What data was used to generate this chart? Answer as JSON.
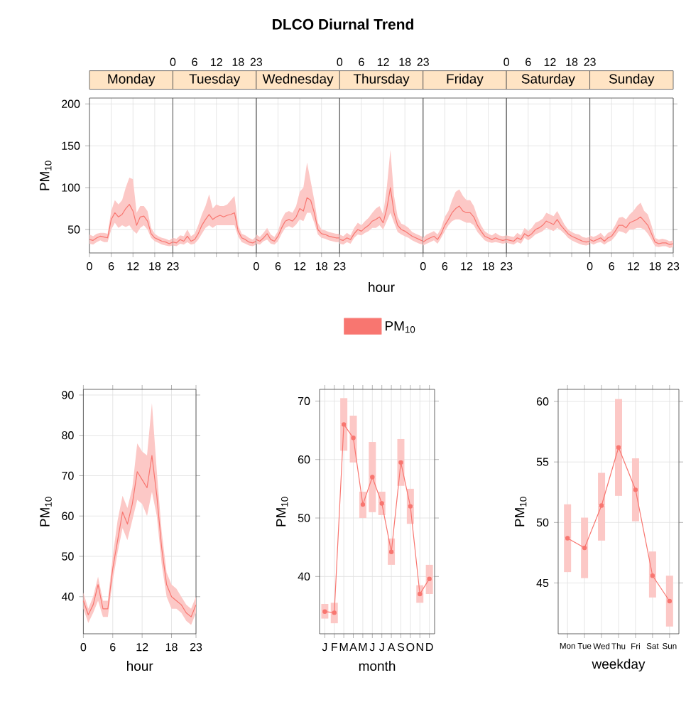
{
  "chart_data": [
    {
      "type": "line",
      "title": "Monday",
      "ylabel": "PM$_{10}$",
      "annotations": [
        "DLCO Diurnal Trend"
      ],
      "x": [
        0,
        1,
        2,
        3,
        4,
        5,
        6,
        7,
        8,
        9,
        10,
        11,
        12,
        13,
        14,
        15,
        16,
        17,
        18,
        19,
        20,
        21,
        22,
        23
      ],
      "xlim": [
        0,
        23
      ],
      "xticks": [
        0,
        6,
        12,
        18,
        23
      ],
      "ylim": [
        22,
        207
      ],
      "yticks": [
        50,
        100,
        150,
        200
      ],
      "grid": true,
      "series": [
        {
          "color": "#f87670",
          "values": [
            38,
            37,
            40,
            42,
            41,
            40,
            62,
            70,
            65,
            68,
            75,
            80,
            72,
            55,
            65,
            66,
            60,
            45,
            40,
            38,
            36,
            35,
            33,
            35
          ],
          "lower": [
            33,
            32,
            35,
            37,
            35,
            35,
            50,
            58,
            52,
            55,
            53,
            55,
            49,
            45,
            52,
            55,
            50,
            40,
            36,
            34,
            32,
            31,
            30,
            31
          ],
          "upper": [
            44,
            42,
            45,
            46,
            46,
            45,
            72,
            85,
            80,
            85,
            100,
            112,
            110,
            70,
            78,
            78,
            72,
            52,
            45,
            42,
            40,
            39,
            37,
            40
          ]
        }
      ]
    },
    {
      "type": "line",
      "title": "Tuesday",
      "tick_labels": "x",
      "x": [
        0,
        1,
        2,
        3,
        4,
        5,
        6,
        7,
        8,
        9,
        10,
        11,
        12,
        13,
        14,
        15,
        16,
        17,
        18,
        19,
        20,
        21,
        22,
        23
      ],
      "xlim": [
        0,
        23
      ],
      "xticks": [
        0,
        6,
        12,
        18,
        23
      ],
      "ylim": [
        22,
        207
      ],
      "yticks": [
        50,
        100,
        150,
        200
      ],
      "grid": true,
      "series": [
        {
          "color": "#f87670",
          "values": [
            35,
            34,
            38,
            36,
            42,
            36,
            38,
            45,
            55,
            62,
            68,
            62,
            65,
            67,
            65,
            67,
            68,
            70,
            48,
            40,
            38,
            35,
            34,
            36
          ],
          "lower": [
            31,
            30,
            33,
            32,
            35,
            32,
            33,
            38,
            45,
            52,
            55,
            52,
            55,
            55,
            55,
            55,
            55,
            55,
            42,
            35,
            33,
            31,
            30,
            32
          ],
          "upper": [
            40,
            39,
            43,
            42,
            50,
            42,
            45,
            55,
            68,
            78,
            92,
            75,
            80,
            78,
            78,
            80,
            85,
            90,
            55,
            45,
            43,
            40,
            38,
            42
          ]
        }
      ]
    },
    {
      "type": "line",
      "title": "Wednesday",
      "tick_labels": "x",
      "x": [
        0,
        1,
        2,
        3,
        4,
        5,
        6,
        7,
        8,
        9,
        10,
        11,
        12,
        13,
        14,
        15,
        16,
        17,
        18,
        19,
        20,
        21,
        22,
        23
      ],
      "xlim": [
        0,
        23
      ],
      "xticks": [
        0,
        6,
        12,
        18,
        23
      ],
      "ylim": [
        22,
        207
      ],
      "yticks": [
        50,
        100,
        150,
        200
      ],
      "grid": true,
      "series": [
        {
          "color": "#f87670",
          "values": [
            38,
            36,
            40,
            45,
            38,
            36,
            42,
            52,
            60,
            62,
            60,
            65,
            75,
            72,
            88,
            85,
            70,
            50,
            45,
            44,
            42,
            41,
            40,
            40
          ],
          "lower": [
            33,
            32,
            36,
            38,
            33,
            32,
            36,
            45,
            52,
            54,
            52,
            56,
            62,
            60,
            70,
            70,
            58,
            44,
            40,
            39,
            37,
            36,
            35,
            35
          ],
          "upper": [
            44,
            41,
            46,
            52,
            44,
            41,
            48,
            62,
            70,
            72,
            70,
            78,
            95,
            100,
            130,
            108,
            85,
            58,
            50,
            49,
            47,
            46,
            45,
            45
          ]
        }
      ]
    },
    {
      "type": "line",
      "title": "Thursday",
      "xlabel": "hour",
      "legend": "bottom",
      "tick_labels": "x",
      "x": [
        0,
        1,
        2,
        3,
        4,
        5,
        6,
        7,
        8,
        9,
        10,
        11,
        12,
        13,
        14,
        15,
        16,
        17,
        18,
        19,
        20,
        21,
        22,
        23
      ],
      "xlim": [
        0,
        23
      ],
      "xticks": [
        0,
        6,
        12,
        18,
        23
      ],
      "ylim": [
        22,
        207
      ],
      "yticks": [
        50,
        100,
        150,
        200
      ],
      "grid": true,
      "series": [
        {
          "name": "PM$_{10}$",
          "color": "#f87670",
          "values": [
            38,
            37,
            40,
            38,
            45,
            50,
            48,
            52,
            55,
            60,
            62,
            65,
            58,
            75,
            100,
            70,
            55,
            50,
            48,
            45,
            42,
            40,
            38,
            36
          ],
          "lower": [
            33,
            32,
            35,
            33,
            40,
            44,
            43,
            46,
            48,
            52,
            52,
            55,
            50,
            60,
            70,
            58,
            47,
            44,
            42,
            40,
            37,
            35,
            33,
            32
          ],
          "upper": [
            44,
            42,
            46,
            43,
            52,
            58,
            55,
            60,
            64,
            70,
            75,
            78,
            68,
            100,
            145,
            90,
            65,
            57,
            55,
            52,
            47,
            45,
            43,
            41
          ]
        }
      ]
    },
    {
      "type": "line",
      "title": "Friday",
      "tick_labels": "x",
      "x": [
        0,
        1,
        2,
        3,
        4,
        5,
        6,
        7,
        8,
        9,
        10,
        11,
        12,
        13,
        14,
        15,
        16,
        17,
        18,
        19,
        20,
        21,
        22,
        23
      ],
      "xlim": [
        0,
        23
      ],
      "xticks": [
        0,
        6,
        12,
        18,
        23
      ],
      "ylim": [
        22,
        207
      ],
      "yticks": [
        50,
        100,
        150,
        200
      ],
      "grid": true,
      "series": [
        {
          "color": "#f87670",
          "values": [
            35,
            38,
            40,
            42,
            38,
            45,
            55,
            62,
            70,
            75,
            78,
            72,
            70,
            70,
            65,
            55,
            48,
            42,
            40,
            38,
            40,
            38,
            37,
            38
          ],
          "lower": [
            31,
            33,
            35,
            37,
            33,
            40,
            48,
            55,
            60,
            62,
            62,
            60,
            58,
            58,
            55,
            47,
            42,
            37,
            35,
            34,
            35,
            34,
            33,
            34
          ],
          "upper": [
            40,
            44,
            46,
            48,
            44,
            52,
            65,
            72,
            85,
            95,
            98,
            90,
            85,
            85,
            78,
            65,
            55,
            48,
            45,
            43,
            46,
            43,
            42,
            43
          ]
        }
      ]
    },
    {
      "type": "line",
      "title": "Saturday",
      "tick_labels": "x",
      "x": [
        0,
        1,
        2,
        3,
        4,
        5,
        6,
        7,
        8,
        9,
        10,
        11,
        12,
        13,
        14,
        15,
        16,
        17,
        18,
        19,
        20,
        21,
        22,
        23
      ],
      "xlim": [
        0,
        23
      ],
      "xticks": [
        0,
        6,
        12,
        18,
        23
      ],
      "ylim": [
        22,
        207
      ],
      "yticks": [
        50,
        100,
        150,
        200
      ],
      "grid": true,
      "series": [
        {
          "color": "#f87670",
          "values": [
            38,
            37,
            36,
            40,
            38,
            45,
            42,
            45,
            50,
            52,
            55,
            60,
            58,
            56,
            62,
            55,
            50,
            45,
            42,
            40,
            38,
            36,
            35,
            36
          ],
          "lower": [
            34,
            33,
            32,
            35,
            33,
            40,
            37,
            40,
            44,
            46,
            48,
            52,
            50,
            48,
            52,
            49,
            45,
            40,
            37,
            35,
            33,
            31.5,
            31,
            32
          ],
          "upper": [
            43,
            42,
            41,
            46,
            43,
            52,
            48,
            52,
            58,
            60,
            63,
            70,
            68,
            66,
            72,
            64,
            56,
            50,
            47,
            45,
            44,
            41,
            40,
            41
          ]
        }
      ]
    },
    {
      "type": "line",
      "title": "Sunday",
      "tick_labels": "x",
      "x": [
        0,
        1,
        2,
        3,
        4,
        5,
        6,
        7,
        8,
        9,
        10,
        11,
        12,
        13,
        14,
        15,
        16,
        17,
        18,
        19,
        20,
        21,
        22,
        23
      ],
      "xlim": [
        0,
        23
      ],
      "xticks": [
        0,
        6,
        12,
        18,
        23
      ],
      "ylim": [
        22,
        207
      ],
      "yticks": [
        50,
        100,
        150,
        200
      ],
      "grid": true,
      "series": [
        {
          "color": "#f87670",
          "values": [
            38,
            36,
            38,
            40,
            36,
            40,
            42,
            48,
            55,
            55,
            52,
            58,
            60,
            62,
            65,
            60,
            55,
            45,
            35,
            33,
            34,
            34,
            32,
            33
          ],
          "lower": [
            34,
            32,
            34,
            35,
            32,
            35,
            37,
            42,
            48,
            47,
            45,
            50,
            50,
            52,
            52,
            50,
            45,
            38,
            30,
            29,
            30,
            30,
            28,
            29
          ],
          "upper": [
            43,
            41,
            43,
            46,
            41,
            46,
            48,
            55,
            64,
            65,
            62,
            68,
            72,
            78,
            82,
            72,
            68,
            55,
            40,
            38,
            39,
            38,
            36,
            37
          ]
        }
      ]
    },
    {
      "type": "line",
      "xlabel": "hour",
      "ylabel": "PM$_{10}$",
      "x": [
        0,
        1,
        2,
        3,
        4,
        5,
        6,
        7,
        8,
        9,
        10,
        11,
        12,
        13,
        14,
        15,
        16,
        17,
        18,
        19,
        20,
        21,
        22,
        23
      ],
      "xlim": [
        0,
        23
      ],
      "xticks": [
        0,
        6,
        12,
        18,
        23
      ],
      "ylim": [
        30.8,
        91.4
      ],
      "yticks": [
        40,
        50,
        60,
        70,
        80,
        90
      ],
      "grid": true,
      "series": [
        {
          "color": "#f87670",
          "values": [
            39,
            35.5,
            38,
            43,
            37,
            37,
            47,
            54,
            61,
            58,
            63,
            71,
            69,
            67,
            75,
            65,
            52,
            43,
            40,
            39,
            38,
            36,
            35,
            38
          ],
          "lower": [
            37,
            33.5,
            36,
            39,
            35,
            35,
            44,
            51,
            57,
            54,
            59,
            64,
            63,
            60,
            66,
            60,
            48,
            40,
            37,
            37,
            36,
            34,
            33,
            36
          ],
          "upper": [
            41,
            37,
            40,
            45,
            39,
            39,
            50,
            59,
            65,
            62,
            67,
            78,
            76,
            75,
            88,
            71,
            56,
            46,
            43,
            42,
            40,
            38,
            37,
            40
          ]
        }
      ]
    },
    {
      "type": "line",
      "xlabel": "month",
      "ylabel": "PM$_{10}$",
      "marker": "circle",
      "categories": [
        "J",
        "F",
        "M",
        "A",
        "M",
        "J",
        "J",
        "A",
        "S",
        "O",
        "N",
        "D"
      ],
      "ylim": [
        30.2,
        72
      ],
      "yticks": [
        40,
        50,
        60,
        70
      ],
      "grid": true,
      "series": [
        {
          "color": "#f87670",
          "values": [
            34,
            33.8,
            66,
            63.7,
            52.3,
            57,
            52.5,
            44.2,
            59.5,
            52,
            37,
            39.6
          ],
          "errors": [
            [
              32.8,
              35.3
            ],
            [
              32,
              35.5
            ],
            [
              61.5,
              70.5
            ],
            [
              59.5,
              67.5
            ],
            [
              50,
              54.5
            ],
            [
              51,
              63
            ],
            [
              50.5,
              54.5
            ],
            [
              42,
              46.5
            ],
            [
              55.5,
              63.5
            ],
            [
              49,
              55
            ],
            [
              35.5,
              38.5
            ],
            [
              37,
              42
            ]
          ]
        }
      ]
    },
    {
      "type": "line",
      "xlabel": "weekday",
      "ylabel": "PM$_{10}$",
      "marker": "circle",
      "categories": [
        "Mon",
        "Tue",
        "Wed",
        "Thu",
        "Fri",
        "Sat",
        "Sun"
      ],
      "ylim": [
        40.8,
        61
      ],
      "yticks": [
        45,
        50,
        55,
        60
      ],
      "grid": true,
      "series": [
        {
          "color": "#f87670",
          "values": [
            48.7,
            47.9,
            51.4,
            56.2,
            52.7,
            45.6,
            43.5
          ],
          "errors": [
            [
              45.9,
              51.5
            ],
            [
              45.4,
              50.4
            ],
            [
              48.5,
              54.1
            ],
            [
              52.2,
              60.2
            ],
            [
              50.1,
              55.3
            ],
            [
              43.8,
              47.6
            ],
            [
              41.4,
              45.6
            ]
          ]
        }
      ]
    }
  ]
}
